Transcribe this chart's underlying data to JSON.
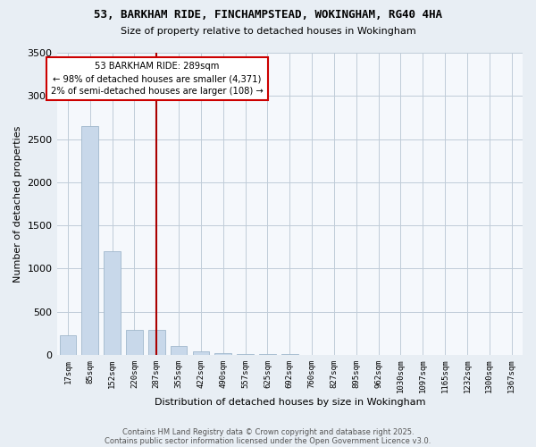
{
  "title1": "53, BARKHAM RIDE, FINCHAMPSTEAD, WOKINGHAM, RG40 4HA",
  "title2": "Size of property relative to detached houses in Wokingham",
  "xlabel": "Distribution of detached houses by size in Wokingham",
  "ylabel": "Number of detached properties",
  "categories": [
    "17sqm",
    "85sqm",
    "152sqm",
    "220sqm",
    "287sqm",
    "355sqm",
    "422sqm",
    "490sqm",
    "557sqm",
    "625sqm",
    "692sqm",
    "760sqm",
    "827sqm",
    "895sqm",
    "962sqm",
    "1030sqm",
    "1097sqm",
    "1165sqm",
    "1232sqm",
    "1300sqm",
    "1367sqm"
  ],
  "values": [
    230,
    2650,
    1200,
    290,
    290,
    100,
    40,
    20,
    10,
    8,
    6,
    4,
    3,
    3,
    2,
    2,
    1,
    1,
    1,
    1,
    1
  ],
  "bar_color": "#c8d8ea",
  "bar_edge_color": "#a0b8cc",
  "highlight_index": 4,
  "highlight_color": "#aa0000",
  "annotation_text": "53 BARKHAM RIDE: 289sqm\n← 98% of detached houses are smaller (4,371)\n2% of semi-detached houses are larger (108) →",
  "annotation_box_color": "#ffffff",
  "annotation_box_edge": "#cc0000",
  "ylim": [
    0,
    3500
  ],
  "yticks": [
    0,
    500,
    1000,
    1500,
    2000,
    2500,
    3000,
    3500
  ],
  "footer1": "Contains HM Land Registry data © Crown copyright and database right 2025.",
  "footer2": "Contains public sector information licensed under the Open Government Licence v3.0.",
  "bg_color": "#e8eef4",
  "plot_bg_color": "#f5f8fc",
  "grid_color": "#c0ccd8"
}
